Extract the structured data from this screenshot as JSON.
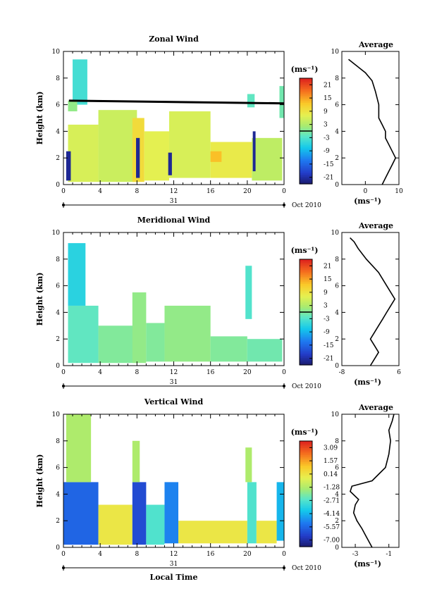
{
  "chart_data": [
    {
      "type": "heatmap",
      "title": "Zonal Wind",
      "ylabel": "Height (km)",
      "xlabel": "",
      "x_ticks": [
        "0",
        "4",
        "8",
        "12",
        "16",
        "20",
        "0"
      ],
      "y_ticks": [
        "0",
        "2",
        "4",
        "6",
        "8",
        "10"
      ],
      "xlim": [
        0,
        24
      ],
      "ylim": [
        0,
        10
      ],
      "date_row": {
        "day": "31",
        "month": "Oct 2010"
      },
      "colorbar": {
        "unit": "(ms⁻¹)",
        "ticks": [
          "21",
          "15",
          "9",
          "3",
          "-3",
          "-9",
          "-15",
          "-21"
        ],
        "range": [
          -24,
          24
        ],
        "zero_line": true
      },
      "blocks": [
        {
          "x": [
            0.5,
            3.8
          ],
          "y": [
            0.2,
            4.5
          ],
          "v": 6
        },
        {
          "x": [
            3.8,
            8.0
          ],
          "y": [
            0.2,
            5.6
          ],
          "v": 5
        },
        {
          "x": [
            7.5,
            8.8
          ],
          "y": [
            0.2,
            5.0
          ],
          "v": 10
        },
        {
          "x": [
            8.8,
            11.5
          ],
          "y": [
            0.3,
            4.0
          ],
          "v": 7
        },
        {
          "x": [
            11.5,
            16.0
          ],
          "y": [
            0.5,
            5.5
          ],
          "v": 6
        },
        {
          "x": [
            16.0,
            20.5
          ],
          "y": [
            0.5,
            3.2
          ],
          "v": 8
        },
        {
          "x": [
            20.5,
            23.8
          ],
          "y": [
            0.3,
            3.5
          ],
          "v": 4
        },
        {
          "x": [
            1.0,
            2.6
          ],
          "y": [
            6.0,
            9.4
          ],
          "v": -4
        },
        {
          "x": [
            0.5,
            1.5
          ],
          "y": [
            5.5,
            6.3
          ],
          "v": 1
        },
        {
          "x": [
            20.0,
            20.8
          ],
          "y": [
            5.8,
            6.8
          ],
          "v": -2
        },
        {
          "x": [
            23.5,
            24.0
          ],
          "y": [
            5.0,
            7.4
          ],
          "v": -1
        },
        {
          "x": [
            16.0,
            17.2
          ],
          "y": [
            1.7,
            2.5
          ],
          "v": 13
        },
        {
          "x": [
            0.3,
            0.8
          ],
          "y": [
            0.3,
            2.5
          ],
          "v": -22
        },
        {
          "x": [
            7.9,
            8.3
          ],
          "y": [
            0.5,
            3.5
          ],
          "v": -22
        },
        {
          "x": [
            11.4,
            11.8
          ],
          "y": [
            0.7,
            2.4
          ],
          "v": -22
        },
        {
          "x": [
            20.6,
            20.9
          ],
          "y": [
            1.0,
            4.0
          ],
          "v": -22
        }
      ],
      "contour_line": {
        "x": [
          0.6,
          24
        ],
        "y": [
          6.3,
          6.1
        ]
      }
    },
    {
      "type": "line",
      "title": "Average",
      "xlabel": "(ms⁻¹)",
      "x_ticks": [
        "0",
        "10"
      ],
      "y_ticks": [
        "0",
        "2",
        "4",
        "6",
        "8",
        "10"
      ],
      "xlim": [
        -7,
        10
      ],
      "ylim": [
        0,
        10
      ],
      "x": [
        5,
        6,
        7,
        8,
        9,
        8,
        7,
        6,
        6,
        5,
        4,
        4,
        3,
        2,
        0,
        -3,
        -5
      ],
      "y": [
        0,
        0.5,
        1.0,
        1.5,
        2.0,
        2.5,
        3.0,
        3.5,
        4.0,
        4.5,
        5.0,
        6.0,
        7.0,
        7.8,
        8.4,
        9.0,
        9.4
      ]
    },
    {
      "type": "heatmap",
      "title": "Meridional Wind",
      "ylabel": "Height (km)",
      "xlabel": "",
      "x_ticks": [
        "0",
        "4",
        "8",
        "12",
        "16",
        "20",
        "0"
      ],
      "y_ticks": [
        "0",
        "2",
        "4",
        "6",
        "8",
        "10"
      ],
      "xlim": [
        0,
        24
      ],
      "ylim": [
        0,
        10
      ],
      "date_row": {
        "day": "31",
        "month": "Oct 2010"
      },
      "colorbar": {
        "unit": "(ms⁻¹)",
        "ticks": [
          "21",
          "15",
          "9",
          "3",
          "-3",
          "-9",
          "-15",
          "-21"
        ],
        "range": [
          -24,
          24
        ],
        "zero_line": true
      },
      "blocks": [
        {
          "x": [
            0.5,
            3.8
          ],
          "y": [
            0.2,
            4.5
          ],
          "v": -2
        },
        {
          "x": [
            3.8,
            8.0
          ],
          "y": [
            0.2,
            3.0
          ],
          "v": 0
        },
        {
          "x": [
            7.5,
            9.0
          ],
          "y": [
            0.2,
            5.5
          ],
          "v": 1
        },
        {
          "x": [
            9.0,
            11.0
          ],
          "y": [
            0.3,
            3.2
          ],
          "v": 0
        },
        {
          "x": [
            11.0,
            16.0
          ],
          "y": [
            0.3,
            4.5
          ],
          "v": 1
        },
        {
          "x": [
            16.0,
            20.0
          ],
          "y": [
            0.3,
            2.2
          ],
          "v": 0
        },
        {
          "x": [
            20.0,
            23.8
          ],
          "y": [
            0.3,
            2.0
          ],
          "v": -1
        },
        {
          "x": [
            0.5,
            2.4
          ],
          "y": [
            4.5,
            9.2
          ],
          "v": -6
        },
        {
          "x": [
            19.8,
            20.5
          ],
          "y": [
            3.5,
            7.5
          ],
          "v": -3
        }
      ]
    },
    {
      "type": "line",
      "title": "Average",
      "xlabel": "(ms⁻¹)",
      "x_ticks": [
        "-8",
        "6"
      ],
      "y_ticks": [
        "0",
        "2",
        "4",
        "6",
        "8",
        "10"
      ],
      "xlim": [
        -8,
        6
      ],
      "ylim": [
        0,
        10
      ],
      "x": [
        -1,
        0,
        1,
        0,
        -1,
        0,
        1,
        2,
        3,
        4,
        5,
        3,
        1,
        -2,
        -4,
        -5,
        -6
      ],
      "y": [
        0,
        0.5,
        1.0,
        1.5,
        2.0,
        2.5,
        3.0,
        3.5,
        4.0,
        4.5,
        5.0,
        6.0,
        7.0,
        8.0,
        8.8,
        9.3,
        9.6
      ]
    },
    {
      "type": "heatmap",
      "title": "Vertical Wind",
      "ylabel": "Height (km)",
      "xlabel": "Local Time",
      "x_ticks": [
        "0",
        "4",
        "8",
        "12",
        "16",
        "20",
        "0"
      ],
      "y_ticks": [
        "0",
        "2",
        "4",
        "6",
        "8",
        "10"
      ],
      "xlim": [
        0,
        24
      ],
      "ylim": [
        0,
        10
      ],
      "date_row": {
        "day": "31",
        "month": "Oct 2010"
      },
      "colorbar": {
        "unit": "(ms⁻¹)",
        "ticks": [
          "3.09",
          "1.57",
          "0.14",
          "-1.28",
          "-2.71",
          "-4.14",
          "-5.57",
          "-7.00"
        ],
        "range": [
          -7.7,
          3.8
        ],
        "zero_line": false
      },
      "blocks": [
        {
          "x": [
            0.0,
            3.8
          ],
          "y": [
            0.2,
            4.9
          ],
          "v": -5.6
        },
        {
          "x": [
            0.3,
            3.0
          ],
          "y": [
            4.9,
            10.0
          ],
          "v": -1.3
        },
        {
          "x": [
            3.8,
            7.5
          ],
          "y": [
            0.2,
            3.2
          ],
          "v": 0.1
        },
        {
          "x": [
            7.5,
            9.0
          ],
          "y": [
            0.2,
            4.9
          ],
          "v": -6.2
        },
        {
          "x": [
            7.5,
            8.3
          ],
          "y": [
            4.9,
            8.0
          ],
          "v": -1.3
        },
        {
          "x": [
            9.0,
            11.0
          ],
          "y": [
            0.2,
            3.2
          ],
          "v": -2.7
        },
        {
          "x": [
            11.0,
            12.5
          ],
          "y": [
            0.3,
            4.9
          ],
          "v": -5.0
        },
        {
          "x": [
            12.5,
            20.0
          ],
          "y": [
            0.3,
            2.0
          ],
          "v": 0.1
        },
        {
          "x": [
            20.0,
            21.0
          ],
          "y": [
            0.3,
            4.9
          ],
          "v": -2.7
        },
        {
          "x": [
            21.0,
            23.2
          ],
          "y": [
            0.3,
            2.0
          ],
          "v": 0.1
        },
        {
          "x": [
            23.2,
            24.0
          ],
          "y": [
            0.5,
            4.9
          ],
          "v": -4.1
        },
        {
          "x": [
            19.8,
            20.5
          ],
          "y": [
            4.9,
            7.5
          ],
          "v": -1.3
        }
      ]
    },
    {
      "type": "line",
      "title": "Average",
      "xlabel": "(ms⁻¹)",
      "x_ticks": [
        "-3",
        "-1"
      ],
      "y_ticks": [
        "0",
        "2",
        "4",
        "6",
        "8",
        "10"
      ],
      "xlim": [
        -3.8,
        -0.4
      ],
      "ylim": [
        0,
        10
      ],
      "x": [
        -2.0,
        -2.3,
        -2.6,
        -2.9,
        -3.1,
        -3.0,
        -2.8,
        -3.3,
        -3.2,
        -2.0,
        -1.6,
        -1.2,
        -1.0,
        -0.9,
        -1.0,
        -0.8,
        -0.7
      ],
      "y": [
        0,
        0.7,
        1.4,
        2.0,
        2.6,
        3.2,
        3.6,
        4.2,
        4.6,
        5.0,
        5.5,
        6.0,
        7.0,
        8.0,
        8.8,
        9.5,
        10.0
      ]
    }
  ]
}
